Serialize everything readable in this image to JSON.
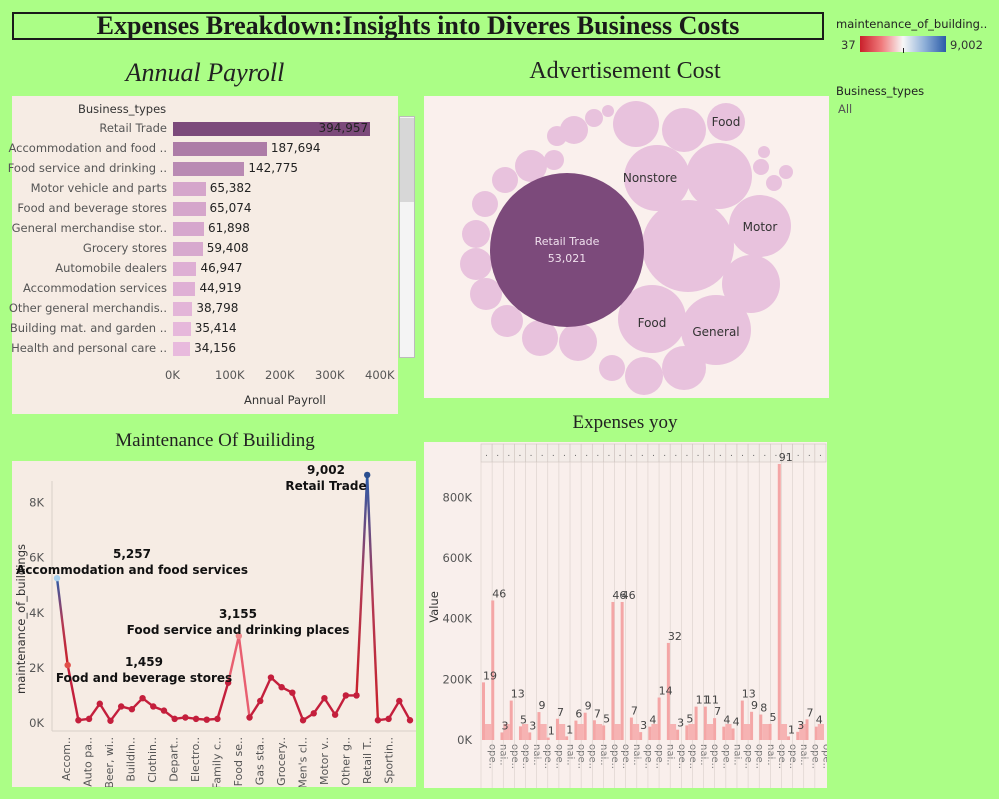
{
  "header": {
    "title": "Expenses Breakdown:Insights into Diveres Business Costs"
  },
  "legend": {
    "color_title": "maintenance_of_building..",
    "min_label": "37",
    "max_label": "9,002",
    "filter_title": "Business_types",
    "filter_value": "All",
    "colors": {
      "low": "#d7191c",
      "mid": "#f7f7f7",
      "high": "#2b5ba8"
    }
  },
  "payroll": {
    "title": "Annual Payroll",
    "column_header": "Business_types",
    "xlabel": "Annual Payroll",
    "ticks": [
      "0K",
      "100K",
      "200K",
      "300K",
      "400K"
    ],
    "items": [
      {
        "label": "Retail Trade",
        "value": 394957,
        "display": "394,957"
      },
      {
        "label": "Accommodation and food ..",
        "value": 187694,
        "display": "187,694"
      },
      {
        "label": "Food service and drinking ..",
        "value": 142775,
        "display": "142,775"
      },
      {
        "label": "Motor vehicle and parts",
        "value": 65382,
        "display": "65,382"
      },
      {
        "label": "Food and beverage stores",
        "value": 65074,
        "display": "65,074"
      },
      {
        "label": "General merchandise stor..",
        "value": 61898,
        "display": "61,898"
      },
      {
        "label": "Grocery stores",
        "value": 59408,
        "display": "59,408"
      },
      {
        "label": "Automobile dealers",
        "value": 46947,
        "display": "46,947"
      },
      {
        "label": "Accommodation services",
        "value": 44919,
        "display": "44,919"
      },
      {
        "label": "Other general merchandis..",
        "value": 38798,
        "display": "38,798"
      },
      {
        "label": "Building mat. and garden ..",
        "value": 35414,
        "display": "35,414"
      },
      {
        "label": "Health and personal care ..",
        "value": 34156,
        "display": "34,156"
      }
    ]
  },
  "advertisement": {
    "title": "Advertisement  Cost",
    "main_label": "Retail Trade",
    "main_value": "53,021",
    "labels": {
      "nonstore": "Nonstore",
      "food_top": "Food",
      "motor": "Motor",
      "food_bottom": "Food",
      "general": "General"
    }
  },
  "maintenance": {
    "title": "Maintenance Of Builiding",
    "ylabel": "maintenance_of_buildings",
    "yticks": [
      "8K",
      "6K",
      "4K",
      "2K",
      "0K"
    ],
    "xlabels": [
      "Accom..",
      "Auto pa..",
      "Beer, wi..",
      "Buildin..",
      "Clothin..",
      "Depart..",
      "Electro..",
      "Family c..",
      "Food se..",
      "Gas sta..",
      "Grocery..",
      "Men's cl..",
      "Motor v..",
      "Other g..",
      "Retail T..",
      "Sportin.."
    ],
    "annotations": [
      {
        "value": "5,257",
        "label": "Accommodation and food services"
      },
      {
        "value": "3,155",
        "label": "Food service and drinking places"
      },
      {
        "value": "1,459",
        "label": "Food and beverage stores"
      },
      {
        "value": "9,002",
        "label": "Retail Trade"
      }
    ]
  },
  "yoy": {
    "title": "Expenses yoy",
    "ylabel": "Value",
    "yticks": [
      "800K",
      "600K",
      "400K",
      "200K",
      "0K"
    ]
  },
  "chart_data": [
    {
      "type": "bar",
      "title": "Annual Payroll",
      "xlabel": "Annual Payroll",
      "categories": [
        "Retail Trade",
        "Accommodation and food ..",
        "Food service and drinking ..",
        "Motor vehicle and parts",
        "Food and beverage stores",
        "General merchandise stor..",
        "Grocery stores",
        "Automobile dealers",
        "Accommodation services",
        "Other general merchandis..",
        "Building mat. and garden ..",
        "Health and personal care .."
      ],
      "values": [
        394957,
        187694,
        142775,
        65382,
        65074,
        61898,
        59408,
        46947,
        44919,
        38798,
        35414,
        34156
      ],
      "xlim": [
        0,
        400000
      ]
    },
    {
      "type": "line",
      "title": "Maintenance Of Builiding",
      "ylabel": "maintenance_of_buildings",
      "ylim": [
        0,
        9000
      ],
      "values": [
        5257,
        2100,
        100,
        150,
        700,
        80,
        600,
        500,
        900,
        600,
        450,
        150,
        200,
        150,
        120,
        150,
        1459,
        3155,
        200,
        800,
        1650,
        1300,
        1100,
        100,
        350,
        900,
        300,
        1000,
        1000,
        9002,
        100,
        150,
        800,
        100
      ]
    },
    {
      "type": "bar",
      "title": "Expenses yoy",
      "ylabel": "Value",
      "ylim": [
        0,
        900000
      ],
      "values": [
        190000,
        460000,
        25000,
        130000,
        45000,
        25000,
        92000,
        8000,
        70000,
        12000,
        64000,
        90000,
        65000,
        48000,
        455000,
        455000,
        74000,
        26000,
        44000,
        140000,
        320000,
        34000,
        48000,
        110000,
        110000,
        72000,
        44000,
        38000,
        130000,
        93000,
        84000,
        53000,
        910000,
        12000,
        27000,
        68000,
        44000
      ]
    }
  ]
}
